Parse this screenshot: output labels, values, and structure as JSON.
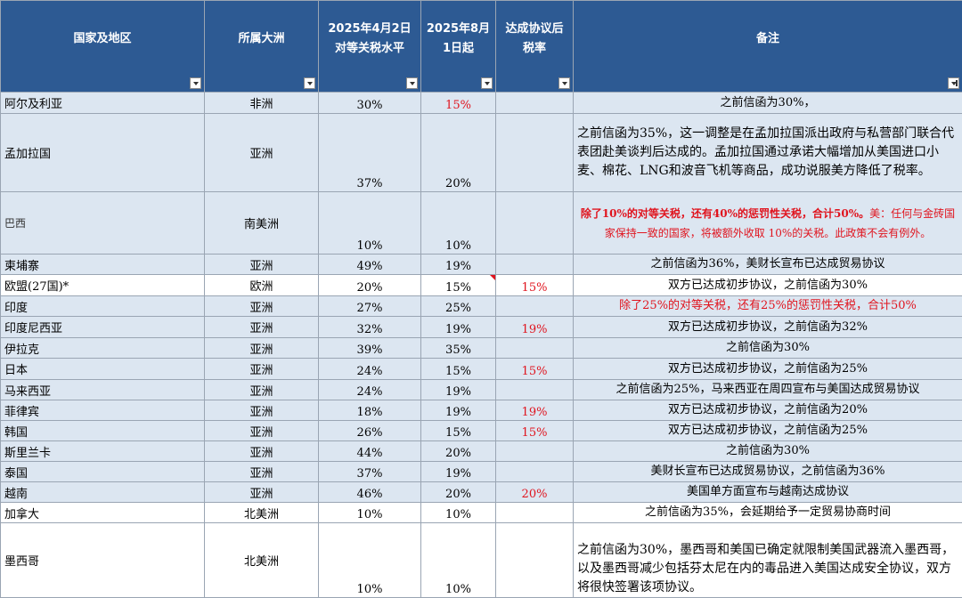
{
  "headers": {
    "country": "国家及地区",
    "continent": "所属大洲",
    "apr2_line1": "2025年4月2日",
    "apr2_line2": "对等关税水平",
    "aug1_line1": "2025年8月",
    "aug1_line2": "1日起",
    "deal_line1": "达成协议后",
    "deal_line2": "税率",
    "note": "备注"
  },
  "rows": [
    {
      "country": "阿尔及利亚",
      "continent": "非洲",
      "apr2": "30%",
      "aug1": "15%",
      "deal": "",
      "note": "之前信函为30%，"
    },
    {
      "country": "孟加拉国",
      "continent": "亚洲",
      "apr2": "37%",
      "aug1": "20%",
      "deal": "",
      "note": "之前信函为35%，这一调整是在孟加拉国派出政府与私营部门联合代表团赴美谈判后达成的。孟加拉国通过承诺大幅增加从美国进口小麦、棉花、LNG和波音飞机等商品，成功说服美方降低了税率。"
    },
    {
      "country": "巴西",
      "continent": "南美洲",
      "apr2": "10%",
      "aug1": "10%",
      "deal": "",
      "note_bold": "除了10%的对等关税，还有40%的惩罚性关税，合计50%。",
      "note": "美：任何与金砖国家保持一致的国家，将被额外收取 10%的关税。此政策不会有例外。"
    },
    {
      "country": "柬埔寨",
      "continent": "亚洲",
      "apr2": "49%",
      "aug1": "19%",
      "deal": "",
      "note": "之前信函为36%，美财长宣布已达成贸易协议"
    },
    {
      "country": "欧盟(27国)*",
      "continent": "欧洲",
      "apr2": "20%",
      "aug1": "15%",
      "deal": "15%",
      "note": "双方已达成初步协议，之前信函为30%"
    },
    {
      "country": "印度",
      "continent": "亚洲",
      "apr2": "27%",
      "aug1": "25%",
      "deal": "",
      "note": "除了25%的对等关税，还有25%的惩罚性关税，合计50%"
    },
    {
      "country": "印度尼西亚",
      "continent": "亚洲",
      "apr2": "32%",
      "aug1": "19%",
      "deal": "19%",
      "note": "双方已达成初步协议，之前信函为32%"
    },
    {
      "country": "伊拉克",
      "continent": "亚洲",
      "apr2": "39%",
      "aug1": "35%",
      "deal": "",
      "note": "之前信函为30%"
    },
    {
      "country": "日本",
      "continent": "亚洲",
      "apr2": "24%",
      "aug1": "15%",
      "deal": "15%",
      "note": "双方已达成初步协议，之前信函为25%"
    },
    {
      "country": "马来西亚",
      "continent": "亚洲",
      "apr2": "24%",
      "aug1": "19%",
      "deal": "",
      "note": "之前信函为25%，马来西亚在周四宣布与美国达成贸易协议"
    },
    {
      "country": "菲律宾",
      "continent": "亚洲",
      "apr2": "18%",
      "aug1": "19%",
      "deal": "19%",
      "note": "双方已达成初步协议，之前信函为20%"
    },
    {
      "country": "韩国",
      "continent": "亚洲",
      "apr2": "26%",
      "aug1": "15%",
      "deal": "15%",
      "note": "双方已达成初步协议，之前信函为25%"
    },
    {
      "country": "斯里兰卡",
      "continent": "亚洲",
      "apr2": "44%",
      "aug1": "20%",
      "deal": "",
      "note": "之前信函为30%"
    },
    {
      "country": "泰国",
      "continent": "亚洲",
      "apr2": "37%",
      "aug1": "19%",
      "deal": "",
      "note": "美财长宣布已达成贸易协议，之前信函为36%"
    },
    {
      "country": "越南",
      "continent": "亚洲",
      "apr2": "46%",
      "aug1": "20%",
      "deal": "20%",
      "note": "美国单方面宣布与越南达成协议"
    },
    {
      "country": "加拿大",
      "continent": "北美洲",
      "apr2": "10%",
      "aug1": "10%",
      "deal": "",
      "note": "之前信函为35%，会延期给予一定贸易协商时间"
    },
    {
      "country": "墨西哥",
      "continent": "北美洲",
      "apr2": "10%",
      "aug1": "10%",
      "deal": "",
      "note": "之前信函为30%，墨西哥和美国已确定就限制美国武器流入墨西哥，以及墨西哥减少包括芬太尼在内的毒品进入美国达成安全协议，双方将很快签署该项协议。"
    }
  ],
  "colors": {
    "header_bg": "#2d5a93",
    "row_bg": "#dce6f1",
    "highlight": "#e0141e"
  },
  "icons": {
    "filter": "filter-dropdown-icon"
  }
}
